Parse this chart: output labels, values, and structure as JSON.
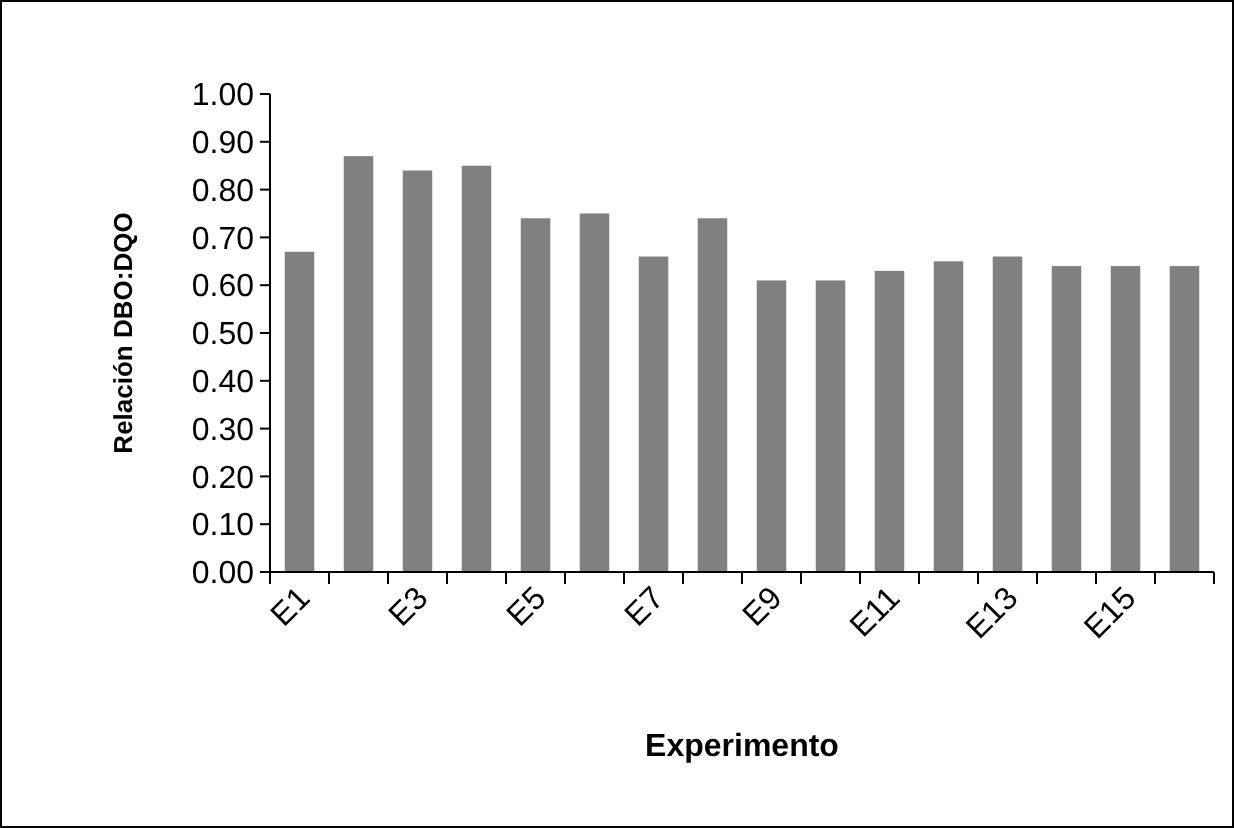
{
  "chart_data": {
    "type": "bar",
    "xlabel": "Experimento",
    "ylabel": "Relación DBO:DQO",
    "categories": [
      "E1",
      null,
      "E3",
      null,
      "E5",
      null,
      "E7",
      null,
      "E9",
      null,
      "E11",
      null,
      "E13",
      null,
      "E15",
      null
    ],
    "values": [
      0.67,
      0.87,
      0.84,
      0.85,
      0.74,
      0.75,
      0.66,
      0.74,
      0.61,
      0.61,
      0.63,
      0.65,
      0.66,
      0.64,
      0.64,
      0.64
    ],
    "color": "#808080",
    "ylim": [
      0,
      1
    ],
    "yticks": [
      {
        "value": 0,
        "label": "0.00"
      },
      {
        "value": 0.1,
        "label": "0.10"
      },
      {
        "value": 0.2,
        "label": "0.20"
      },
      {
        "value": 0.3,
        "label": "0.30"
      },
      {
        "value": 0.4,
        "label": "0.40"
      },
      {
        "value": 0.5,
        "label": "0.50"
      },
      {
        "value": 0.6,
        "label": "0.60"
      },
      {
        "value": 0.7,
        "label": "0.70"
      },
      {
        "value": 0.8,
        "label": "0.80"
      },
      {
        "value": 0.9,
        "label": "0.90"
      },
      {
        "value": 1,
        "label": "1.00"
      }
    ]
  }
}
